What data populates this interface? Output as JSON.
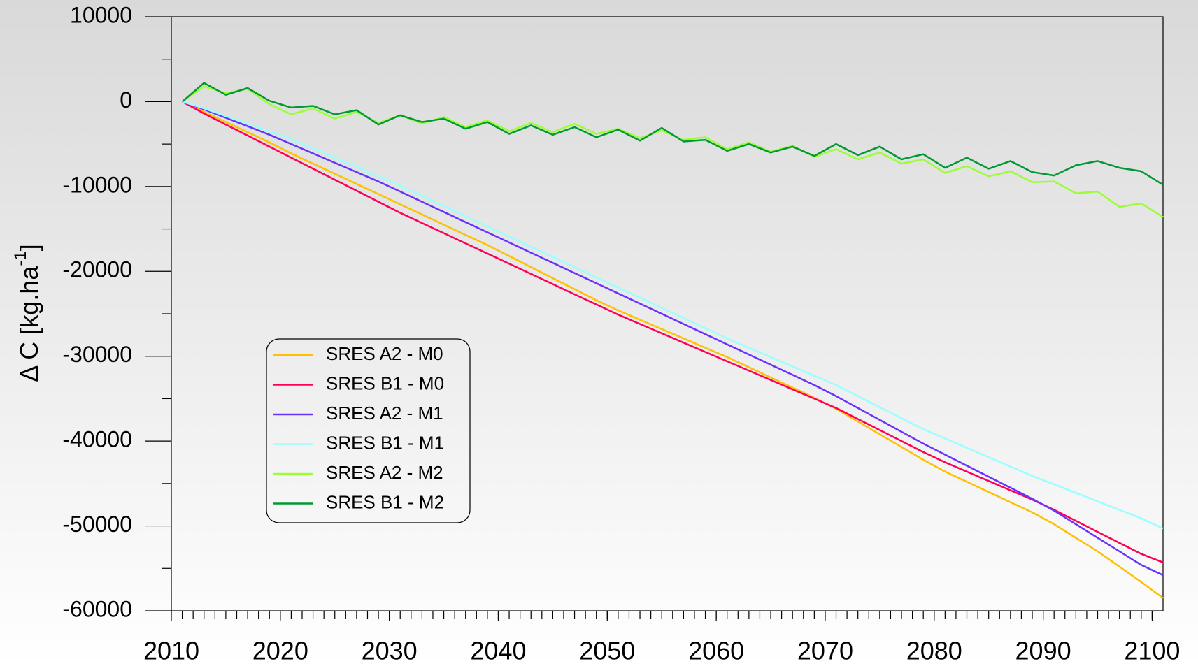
{
  "chart_data": {
    "type": "line",
    "y_label": [
      "Δ C [kg.ha",
      "-1",
      "]"
    ],
    "x": [
      2011,
      2013,
      2015,
      2017,
      2019,
      2021,
      2023,
      2025,
      2027,
      2029,
      2031,
      2033,
      2035,
      2037,
      2039,
      2041,
      2043,
      2045,
      2047,
      2049,
      2051,
      2053,
      2055,
      2057,
      2059,
      2061,
      2063,
      2065,
      2067,
      2069,
      2071,
      2073,
      2075,
      2077,
      2079,
      2081,
      2083,
      2085,
      2087,
      2089,
      2091,
      2093,
      2095,
      2097,
      2099,
      2101
    ],
    "series": [
      {
        "name": "SRES A2 - M0",
        "color": "#ffc000",
        "values": [
          0,
          -1200,
          -2400,
          -3600,
          -4800,
          -6100,
          -7300,
          -8500,
          -9700,
          -10900,
          -12100,
          -13300,
          -14500,
          -15700,
          -16900,
          -18200,
          -19500,
          -20800,
          -22100,
          -23400,
          -24600,
          -25700,
          -26800,
          -27900,
          -29000,
          -30100,
          -31300,
          -32500,
          -33700,
          -34900,
          -36200,
          -37700,
          -39200,
          -40700,
          -42200,
          -43600,
          -44800,
          -46000,
          -47200,
          -48400,
          -49800,
          -51400,
          -53000,
          -54800,
          -56600,
          -58500
        ]
      },
      {
        "name": "SRES B1 - M0",
        "color": "#ff0055",
        "values": [
          0,
          -1400,
          -2700,
          -4000,
          -5300,
          -6600,
          -7900,
          -9200,
          -10500,
          -11800,
          -13100,
          -14300,
          -15500,
          -16700,
          -17900,
          -19100,
          -20300,
          -21500,
          -22700,
          -23900,
          -25100,
          -26200,
          -27300,
          -28400,
          -29500,
          -30600,
          -31700,
          -32800,
          -33900,
          -35000,
          -36100,
          -37400,
          -38700,
          -40000,
          -41300,
          -42500,
          -43600,
          -44700,
          -45800,
          -46900,
          -48100,
          -49400,
          -50700,
          -52000,
          -53300,
          -54300
        ]
      },
      {
        "name": "SRES A2 - M1",
        "color": "#6633ff",
        "values": [
          0,
          -900,
          -1900,
          -2900,
          -3900,
          -5000,
          -6100,
          -7200,
          -8300,
          -9400,
          -10600,
          -11800,
          -13000,
          -14200,
          -15400,
          -16600,
          -17800,
          -19000,
          -20200,
          -21400,
          -22600,
          -23800,
          -25000,
          -26200,
          -27400,
          -28600,
          -29800,
          -31000,
          -32200,
          -33400,
          -34700,
          -36100,
          -37500,
          -38900,
          -40300,
          -41600,
          -42900,
          -44200,
          -45500,
          -46800,
          -48200,
          -49800,
          -51400,
          -53000,
          -54600,
          -55800
        ]
      },
      {
        "name": "SRES B1 - M1",
        "color": "#99ffff",
        "values": [
          0,
          -800,
          -1700,
          -2600,
          -3500,
          -4400,
          -5500,
          -6600,
          -7700,
          -8800,
          -9900,
          -11100,
          -12300,
          -13500,
          -14700,
          -15900,
          -17100,
          -18300,
          -19500,
          -20700,
          -21900,
          -23100,
          -24300,
          -25500,
          -26700,
          -27900,
          -29000,
          -30100,
          -31200,
          -32300,
          -33400,
          -34700,
          -36000,
          -37300,
          -38600,
          -39700,
          -40800,
          -41900,
          -43000,
          -44100,
          -45100,
          -46100,
          -47100,
          -48100,
          -49100,
          -50300
        ]
      },
      {
        "name": "SRES A2 - M2",
        "color": "#99ff33",
        "values": [
          0,
          1800,
          1000,
          1500,
          -300,
          -1500,
          -800,
          -2000,
          -1200,
          -2500,
          -1600,
          -2600,
          -1800,
          -3000,
          -2200,
          -3500,
          -2500,
          -3600,
          -2600,
          -3800,
          -3200,
          -4300,
          -3400,
          -4500,
          -4200,
          -5600,
          -4800,
          -5900,
          -5200,
          -6500,
          -5600,
          -6800,
          -6000,
          -7300,
          -6800,
          -8400,
          -7600,
          -8800,
          -8200,
          -9500,
          -9400,
          -10800,
          -10600,
          -12400,
          -12000,
          -13600
        ]
      },
      {
        "name": "SRES B1 - M2",
        "color": "#009933",
        "values": [
          0,
          2200,
          800,
          1600,
          100,
          -700,
          -500,
          -1500,
          -1000,
          -2700,
          -1600,
          -2400,
          -2000,
          -3200,
          -2400,
          -3800,
          -2800,
          -3900,
          -3000,
          -4200,
          -3300,
          -4600,
          -3100,
          -4700,
          -4500,
          -5800,
          -5000,
          -6000,
          -5300,
          -6400,
          -5000,
          -6300,
          -5300,
          -6800,
          -6200,
          -7800,
          -6600,
          -7900,
          -7000,
          -8300,
          -8700,
          -7500,
          -7000,
          -7800,
          -8200,
          -9800
        ]
      }
    ],
    "xlim": [
      2010,
      2101
    ],
    "xticks": [
      2010,
      2020,
      2030,
      2040,
      2050,
      2060,
      2070,
      2080,
      2090,
      2100
    ],
    "ylim": [
      -60000,
      10000
    ],
    "yticks": [
      -60000,
      -50000,
      -40000,
      -30000,
      -20000,
      -10000,
      0,
      10000
    ],
    "grid": false,
    "legend": "center-left"
  }
}
